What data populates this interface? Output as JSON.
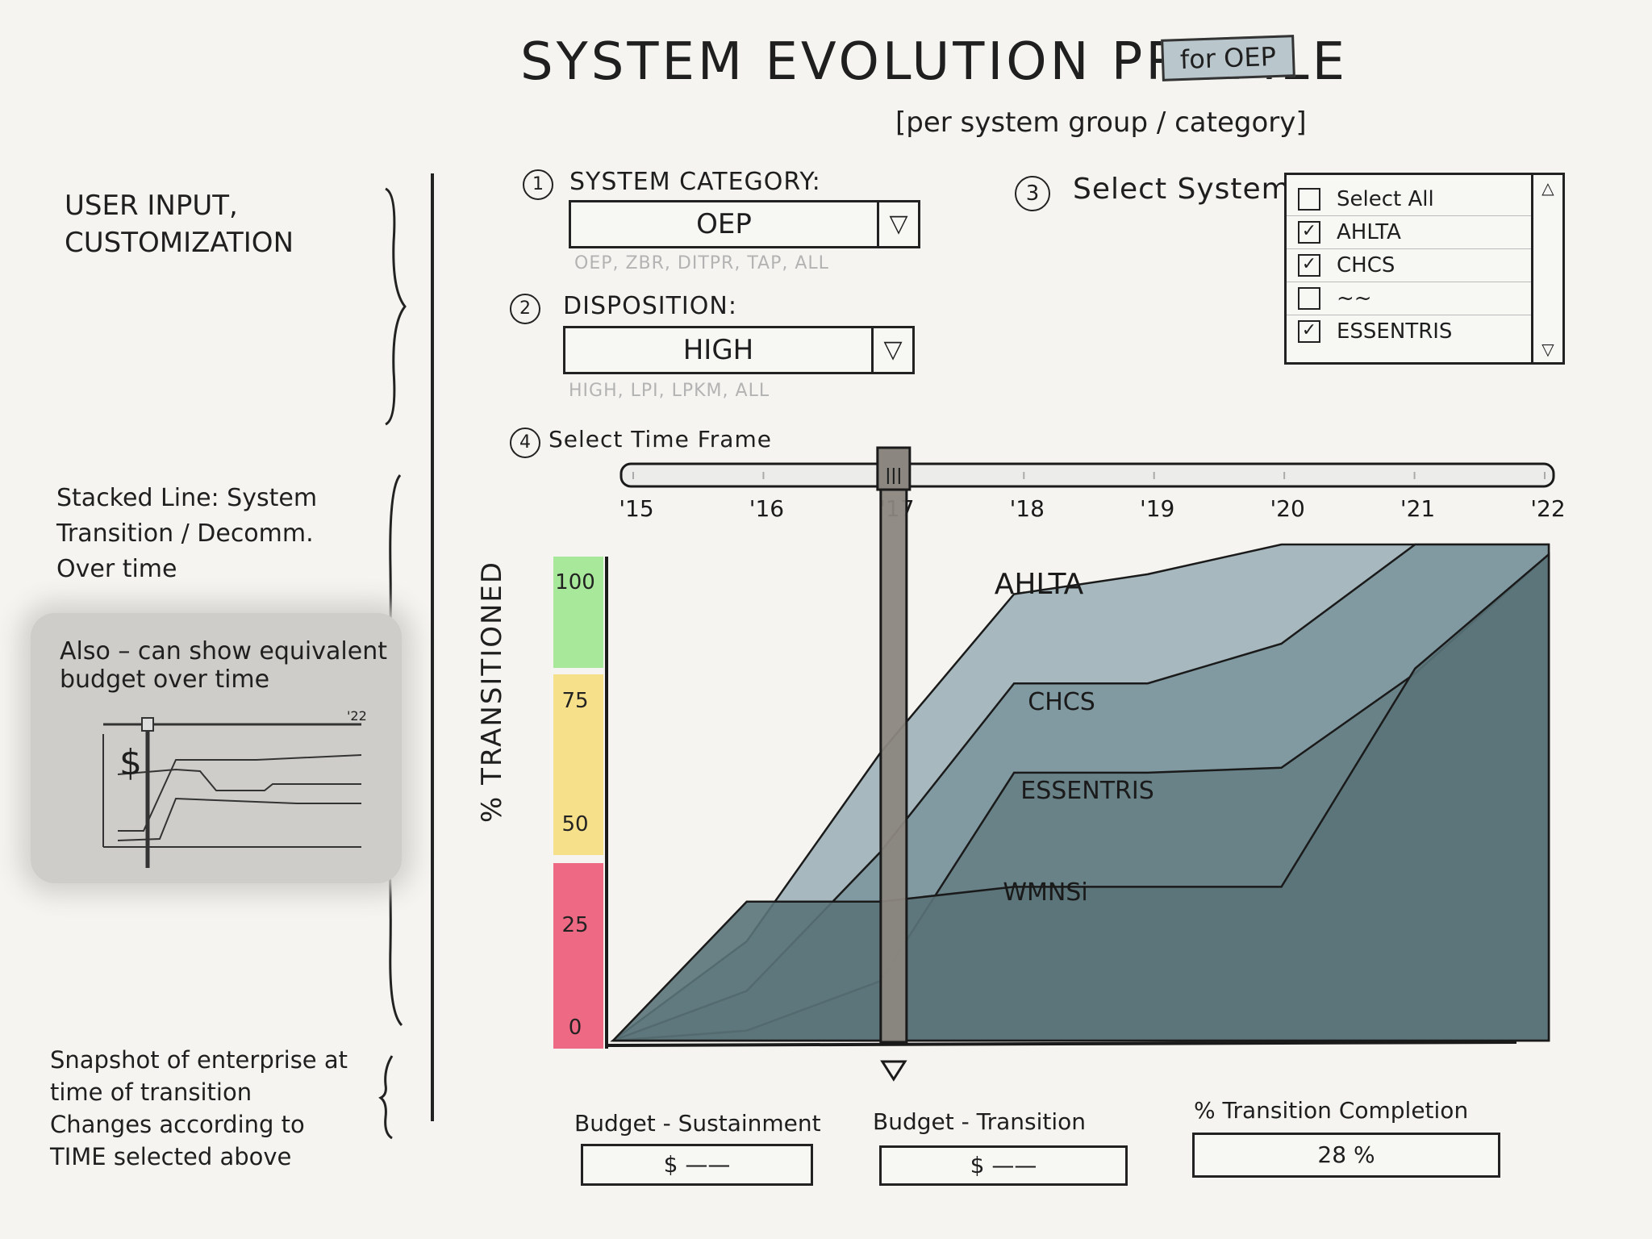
{
  "header": {
    "title": "SYSTEM EVOLUTION PROFILE",
    "tag": "for OEP",
    "subtitle": "[per system group / category]"
  },
  "side_notes": {
    "user_input": "USER INPUT, CUSTOMIZATION",
    "stacked_line": "Stacked Line: System Transition / Decomm. Over time",
    "also": "Also – can show equivalent budget over time",
    "mini_year": "'22",
    "mini_dollar": "$",
    "snapshot": "Snapshot of enterprise at time of transition Changes according to TIME selected above"
  },
  "controls": {
    "category": {
      "number": "1",
      "label": "SYSTEM CATEGORY:",
      "value": "OEP",
      "options_hint": "OEP, ZBR, DITPR, TAP, ALL"
    },
    "disposition": {
      "number": "2",
      "label": "DISPOSITION:",
      "value": "HIGH",
      "options_hint": "HIGH, LPI, LPKM, ALL"
    },
    "systems": {
      "number": "3",
      "label": "Select Systems:",
      "items": [
        {
          "label": "Select All",
          "checked": false
        },
        {
          "label": "AHLTA",
          "checked": true
        },
        {
          "label": "CHCS",
          "checked": true
        },
        {
          "label": "~~",
          "checked": false
        },
        {
          "label": "ESSENTRIS",
          "checked": true
        }
      ]
    },
    "timeframe": {
      "number": "4",
      "label": "Select Time Frame",
      "years": [
        "'15",
        "'16",
        "'17",
        "'18",
        "'19",
        "'20",
        "'21",
        "'22"
      ],
      "selected_year": "'17"
    }
  },
  "chart_data": {
    "type": "area",
    "ylabel": "% TRANSITIONED",
    "yticks": [
      "100",
      "75",
      "50",
      "25",
      "0"
    ],
    "bands": [
      {
        "label": "100",
        "color": "#a8e89a"
      },
      {
        "label": "75",
        "color": "#f7e08a"
      },
      {
        "label": "25",
        "color": "#ee6a84"
      }
    ],
    "x": [
      2015,
      2016,
      2017,
      2018,
      2019,
      2020,
      2021,
      2022
    ],
    "series": [
      {
        "name": "AHLTA",
        "color": "#9eb3b9",
        "values": [
          0,
          20,
          58,
          90,
          94,
          100,
          100,
          100
        ]
      },
      {
        "name": "CHCS",
        "color": "#7d979d",
        "values": [
          0,
          10,
          38,
          72,
          72,
          80,
          100,
          100
        ]
      },
      {
        "name": "ESSENTRIS",
        "color": "#657f85",
        "values": [
          0,
          2,
          12,
          54,
          54,
          55,
          74,
          98
        ]
      },
      {
        "name": "WMNSi",
        "color": "#5a7379",
        "values": [
          0,
          28,
          28,
          31,
          31,
          31,
          75,
          98
        ]
      }
    ]
  },
  "footer": {
    "sustainment": {
      "label": "Budget - Sustainment",
      "value": "$ ——"
    },
    "transition": {
      "label": "Budget - Transition",
      "value": "$ ——"
    },
    "completion": {
      "label": "% Transition Completion",
      "value": "28 %"
    }
  }
}
